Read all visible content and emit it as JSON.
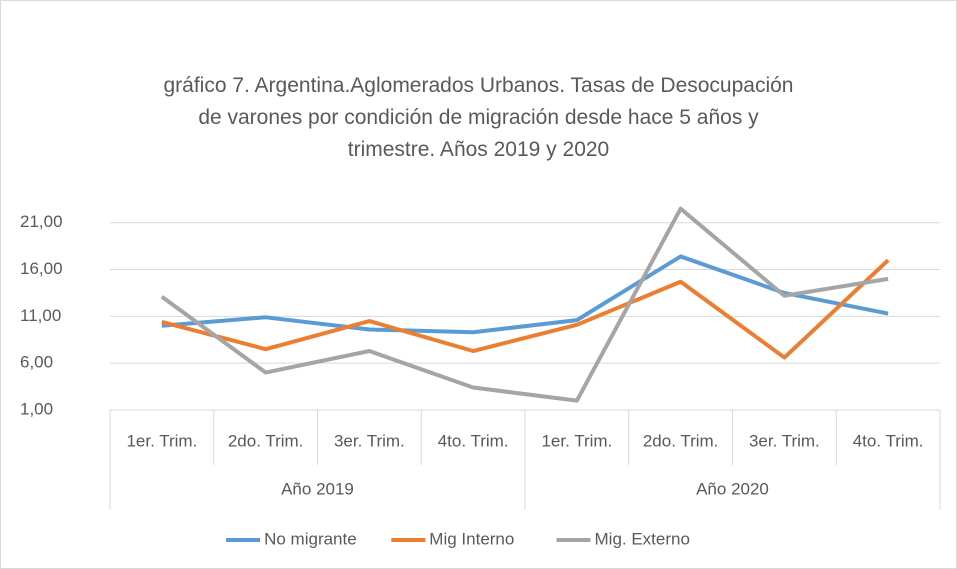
{
  "chart_data": {
    "type": "line",
    "title": "gráfico 7. Argentina.Aglomerados Urbanos. Tasas de Desocupación\nde varones por condición de migración desde hace 5 años y\ntrimestre. Años 2019 y 2020",
    "categories": [
      "1er. Trim.",
      "2do. Trim.",
      "3er. Trim.",
      "4to. Trim.",
      "1er. Trim.",
      "2do. Trim.",
      "3er. Trim.",
      "4to. Trim."
    ],
    "groups": [
      "Año 2019",
      "Año 2020"
    ],
    "series": [
      {
        "name": "No migrante",
        "color": "#5b9bd5",
        "values": [
          10.0,
          10.9,
          9.6,
          9.3,
          10.6,
          17.4,
          13.5,
          11.3
        ]
      },
      {
        "name": "Mig Interno",
        "color": "#ed7d31",
        "values": [
          10.4,
          7.5,
          10.5,
          7.3,
          10.1,
          14.7,
          6.6,
          17.0
        ]
      },
      {
        "name": "Mig. Externo",
        "color": "#a5a5a5",
        "values": [
          13.1,
          5.0,
          7.3,
          3.4,
          2.0,
          22.5,
          13.2,
          15.0
        ]
      }
    ],
    "ylim": [
      1,
      23
    ],
    "yticks": [
      {
        "value": 1,
        "label": "1,00"
      },
      {
        "value": 6,
        "label": "6,00"
      },
      {
        "value": 11,
        "label": "11,00"
      },
      {
        "value": 16,
        "label": "16,00"
      },
      {
        "value": 21,
        "label": "21,00"
      }
    ],
    "grid": true,
    "legend": "bottom"
  }
}
